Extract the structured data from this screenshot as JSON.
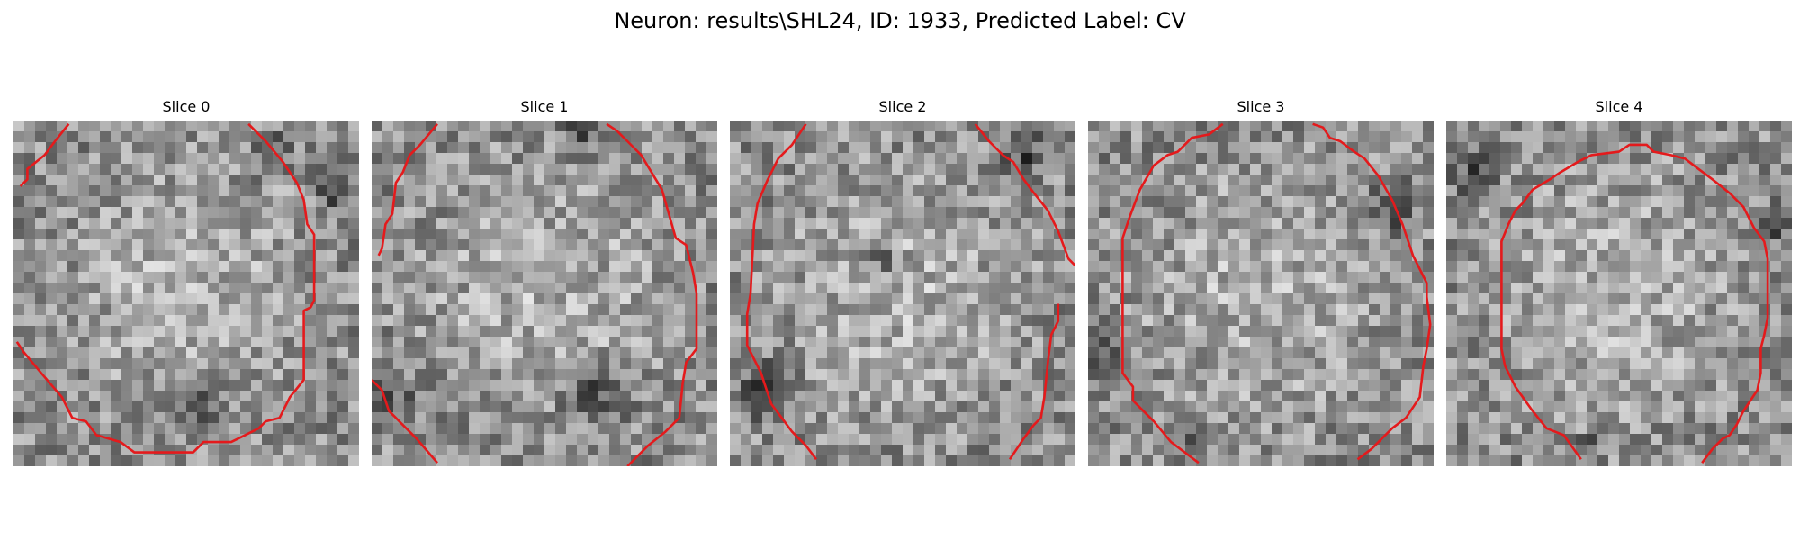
{
  "figure": {
    "title": "Neuron: results\\SHL24, ID: 1933, Predicted Label: CV"
  },
  "panels": [
    {
      "title": "Slice 0"
    },
    {
      "title": "Slice 1"
    },
    {
      "title": "Slice 2"
    },
    {
      "title": "Slice 3"
    },
    {
      "title": "Slice 4"
    }
  ],
  "colors": {
    "contour": "#e41a1c",
    "background": "#ffffff"
  }
}
